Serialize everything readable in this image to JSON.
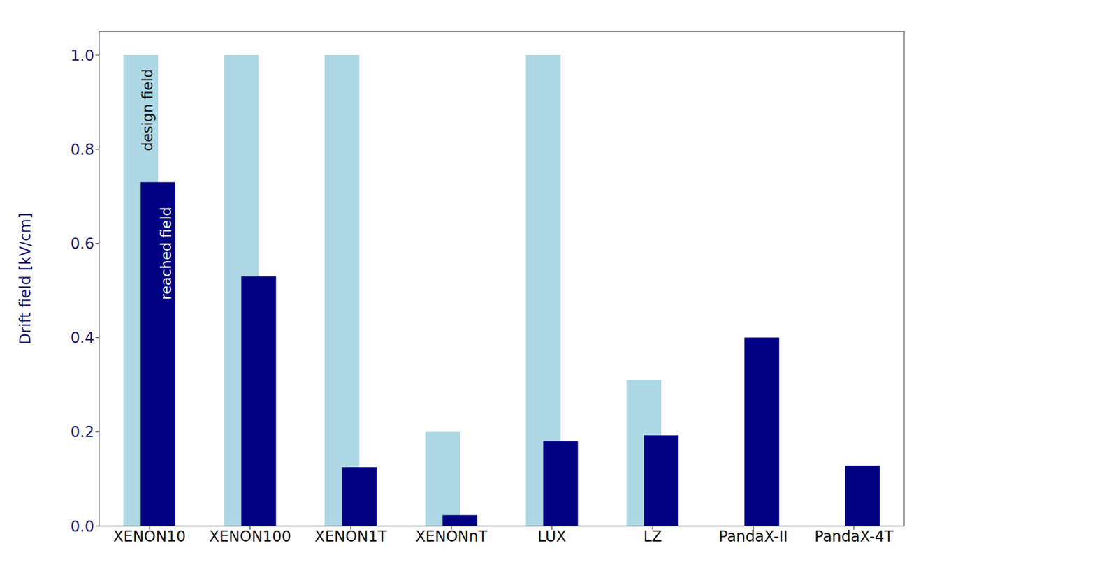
{
  "chart_data": {
    "type": "bar",
    "y_label": "Drift field [kV/cm]",
    "categories": [
      "XENON10",
      "XENON100",
      "XENON1T",
      "XENONnT",
      "LUX",
      "LZ",
      "PandaX-II",
      "PandaX-4T"
    ],
    "series": [
      {
        "name": "design field",
        "color": "#add8e6",
        "values": [
          1.0,
          1.0,
          1.0,
          0.2,
          1.0,
          0.31,
          null,
          null
        ]
      },
      {
        "name": "reached field",
        "color": "#000080",
        "values": [
          0.73,
          0.53,
          0.125,
          0.023,
          0.18,
          0.193,
          0.4,
          0.128
        ]
      }
    ],
    "ylim": [
      0,
      1.05
    ],
    "yticks": [
      {
        "value": 0,
        "label": "0.0"
      },
      0.2,
      0.4,
      0.6,
      0.8,
      {
        "value": 1,
        "label": "1.0"
      }
    ],
    "grid": false
  }
}
